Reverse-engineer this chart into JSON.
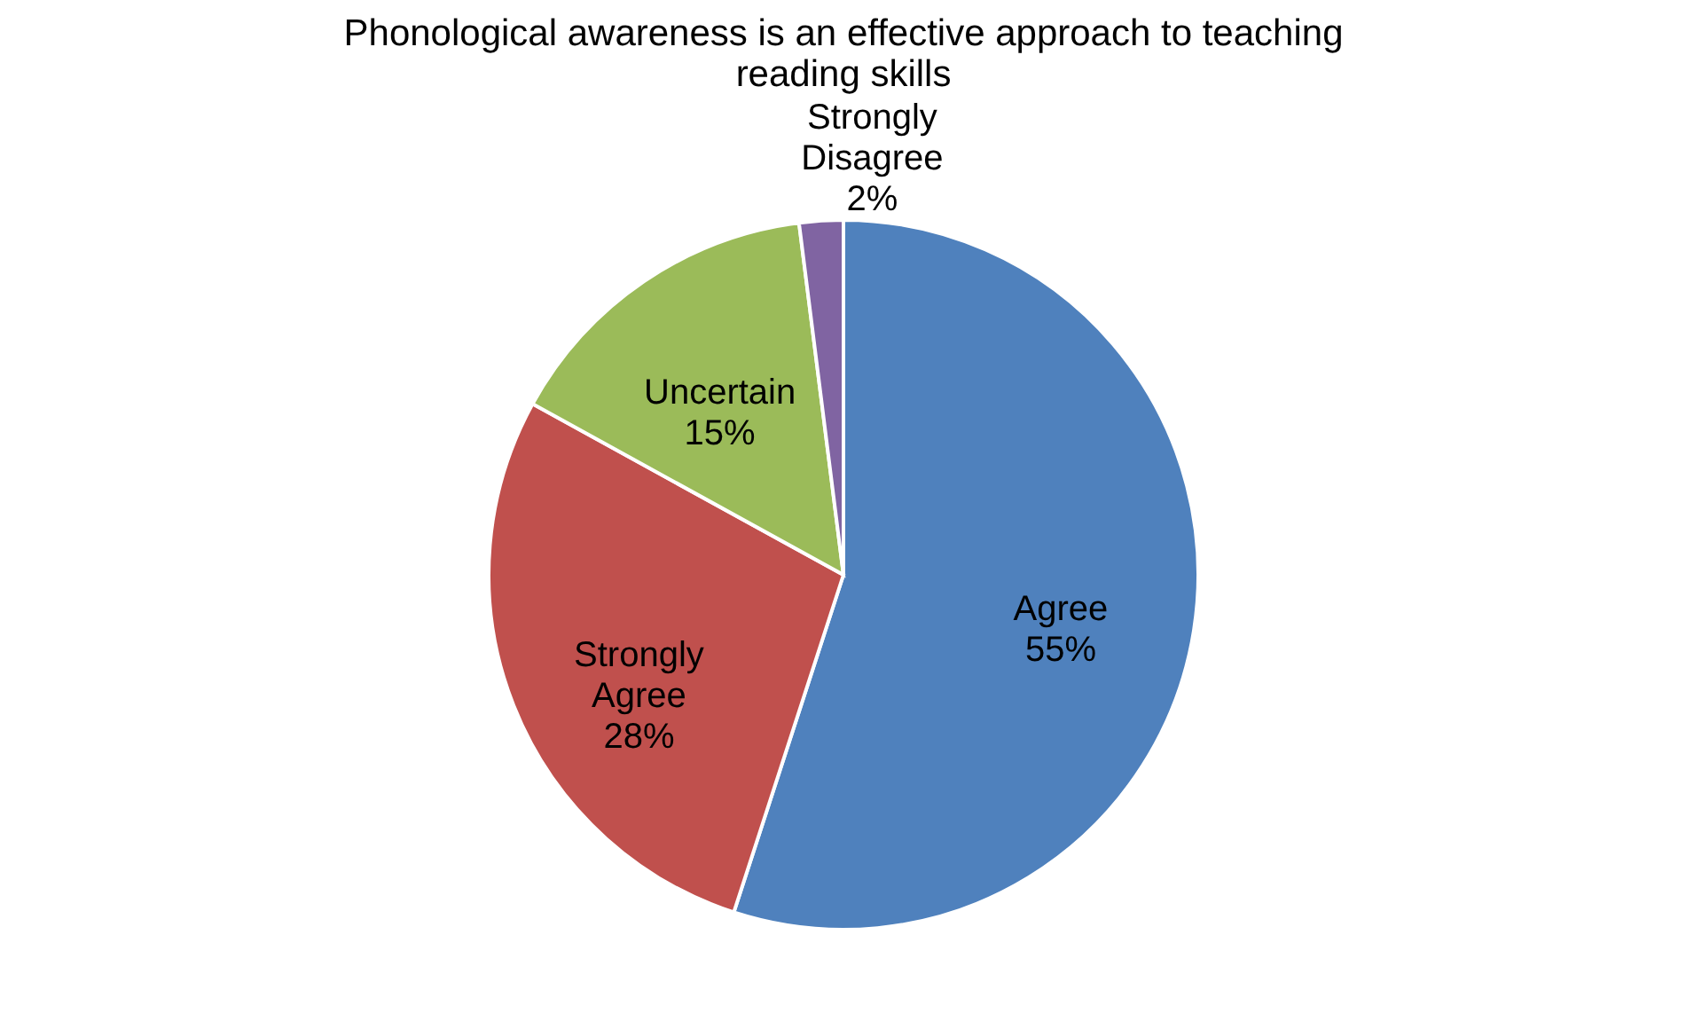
{
  "chart_data": {
    "type": "pie",
    "title": "Phonological awareness is an effective approach to teaching reading skills",
    "categories": [
      "Agree",
      "Strongly Agree",
      "Uncertain",
      "Strongly Disagree"
    ],
    "values": [
      55,
      28,
      15,
      2
    ],
    "colors": [
      "#4f81bd",
      "#c0504d",
      "#9bbb59",
      "#8064a2"
    ],
    "value_labels": [
      "55%",
      "28%",
      "15%",
      "2%"
    ],
    "legend": false
  }
}
